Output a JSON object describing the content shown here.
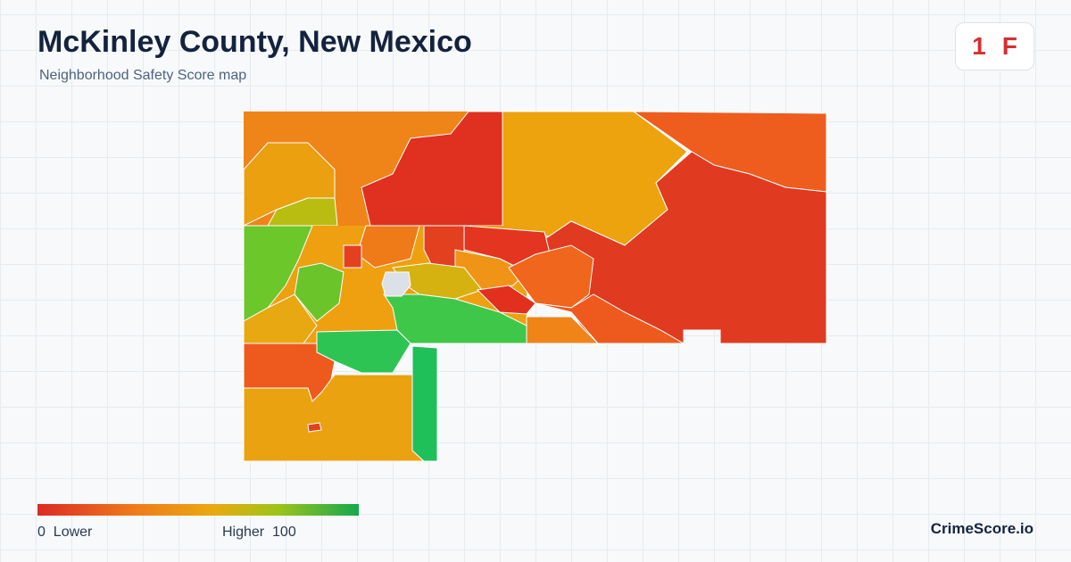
{
  "header": {
    "title": "McKinley County, New Mexico",
    "subtitle": "Neighborhood Safety Score map"
  },
  "badge": {
    "score": 1,
    "grade": "F"
  },
  "legend": {
    "min": 0,
    "min_label": "Lower",
    "max_label": "Higher",
    "max": 100
  },
  "footer": {
    "brand": "CrimeScore.io"
  }
}
